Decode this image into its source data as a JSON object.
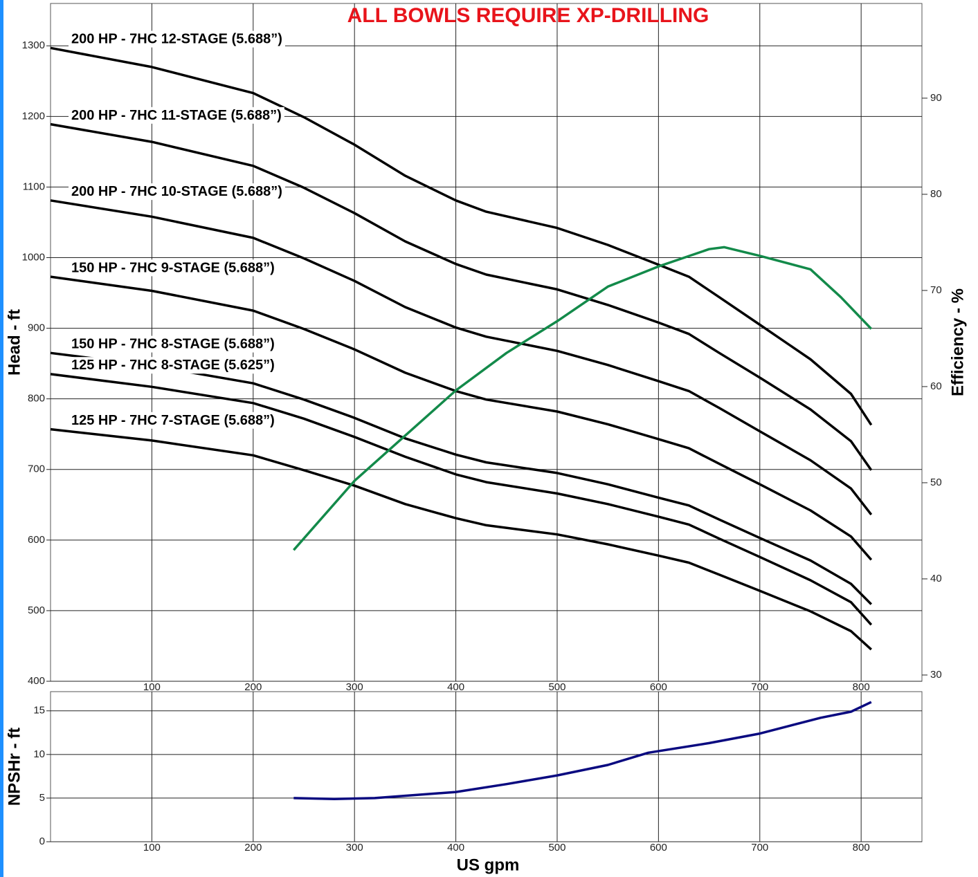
{
  "chart_data": [
    {
      "type": "line",
      "title": "ALL BOWLS REQUIRE XP-DRILLING",
      "xlabel": "US gpm",
      "ylabel": "Head - ft",
      "y2label": "Efficiency - %",
      "xlim": [
        0,
        860
      ],
      "ylim": [
        400,
        1360
      ],
      "y2lim": [
        29.35,
        99.85
      ],
      "xticks": [
        100,
        200,
        300,
        400,
        500,
        600,
        700,
        800
      ],
      "yticks": [
        400,
        500,
        600,
        700,
        800,
        900,
        1000,
        1100,
        1200,
        1300
      ],
      "y2ticks": [
        30,
        40,
        50,
        60,
        70,
        80,
        90
      ],
      "grid": true,
      "series": [
        {
          "name": "200 HP - 7HC 12-STAGE (5.688”)",
          "color": "#000000",
          "x": [
            0,
            100,
            200,
            250,
            300,
            350,
            400,
            430,
            500,
            550,
            600,
            630,
            660,
            700,
            750,
            790,
            810
          ],
          "values": [
            1297,
            1270,
            1233,
            1199,
            1160,
            1116,
            1081,
            1065,
            1042,
            1018,
            990,
            973,
            944,
            905,
            856,
            807,
            763
          ]
        },
        {
          "name": "200 HP - 7HC 11-STAGE (5.688”)",
          "color": "#000000",
          "x": [
            0,
            100,
            200,
            250,
            300,
            350,
            400,
            430,
            500,
            550,
            600,
            630,
            660,
            700,
            750,
            790,
            810
          ],
          "values": [
            1189,
            1164,
            1130,
            1099,
            1063,
            1023,
            991,
            976,
            955,
            933,
            908,
            892,
            865,
            830,
            785,
            740,
            699
          ]
        },
        {
          "name": "200 HP - 7HC 10-STAGE (5.688”)",
          "color": "#000000",
          "x": [
            0,
            100,
            200,
            250,
            300,
            350,
            400,
            430,
            500,
            550,
            600,
            630,
            660,
            700,
            750,
            790,
            810
          ],
          "values": [
            1081,
            1058,
            1028,
            999,
            967,
            930,
            901,
            888,
            868,
            848,
            825,
            811,
            787,
            754,
            713,
            673,
            636
          ]
        },
        {
          "name": "150 HP - 7HC 9-STAGE (5.688”)",
          "color": "#000000",
          "x": [
            0,
            100,
            200,
            250,
            300,
            350,
            400,
            430,
            500,
            550,
            600,
            630,
            660,
            700,
            750,
            790,
            810
          ],
          "values": [
            973,
            953,
            925,
            899,
            870,
            837,
            811,
            799,
            782,
            764,
            743,
            730,
            708,
            679,
            642,
            605,
            572
          ]
        },
        {
          "name": "150 HP - 7HC 8-STAGE (5.688”)",
          "color": "#000000",
          "x": [
            0,
            100,
            200,
            250,
            300,
            350,
            400,
            430,
            500,
            550,
            600,
            630,
            660,
            700,
            750,
            790,
            810
          ],
          "values": [
            865,
            847,
            822,
            799,
            773,
            744,
            721,
            710,
            695,
            679,
            660,
            649,
            629,
            603,
            571,
            538,
            509
          ]
        },
        {
          "name": "125 HP - 7HC 8-STAGE (5.625”)",
          "color": "#000000",
          "x": [
            0,
            100,
            200,
            250,
            300,
            350,
            400,
            430,
            500,
            550,
            600,
            630,
            660,
            700,
            750,
            790,
            810
          ],
          "values": [
            835,
            817,
            794,
            772,
            746,
            718,
            693,
            682,
            666,
            651,
            633,
            622,
            602,
            576,
            543,
            512,
            480
          ]
        },
        {
          "name": "125 HP - 7HC 7-STAGE (5.688”)",
          "color": "#000000",
          "x": [
            0,
            100,
            200,
            250,
            300,
            350,
            400,
            430,
            500,
            550,
            600,
            630,
            660,
            700,
            750,
            790,
            810
          ],
          "values": [
            757,
            741,
            720,
            699,
            677,
            651,
            631,
            621,
            608,
            594,
            578,
            568,
            551,
            528,
            499,
            471,
            445
          ]
        },
        {
          "color": "#138a4a",
          "axis": "y2",
          "x": [
            240,
            300,
            350,
            400,
            450,
            500,
            550,
            600,
            650,
            665,
            700,
            750,
            780,
            810
          ],
          "values": [
            43.0,
            50.2,
            54.9,
            59.6,
            63.5,
            66.8,
            70.4,
            72.5,
            74.3,
            74.5,
            73.6,
            72.2,
            69.3,
            66.0
          ]
        }
      ]
    },
    {
      "type": "line",
      "xlabel": "US gpm",
      "ylabel": "NPSHr - ft",
      "xlim": [
        0,
        860
      ],
      "ylim": [
        0,
        17.2
      ],
      "xticks": [
        100,
        200,
        300,
        400,
        500,
        600,
        700,
        800
      ],
      "yticks": [
        0,
        5,
        10,
        15
      ],
      "grid": true,
      "series": [
        {
          "color": "#0a0a80",
          "x": [
            240,
            280,
            320,
            400,
            450,
            500,
            550,
            590,
            650,
            700,
            730,
            760,
            790,
            810
          ],
          "values": [
            5.0,
            4.9,
            5.0,
            5.7,
            6.6,
            7.6,
            8.8,
            10.2,
            11.3,
            12.4,
            13.3,
            14.2,
            14.9,
            16.0
          ]
        }
      ]
    }
  ]
}
